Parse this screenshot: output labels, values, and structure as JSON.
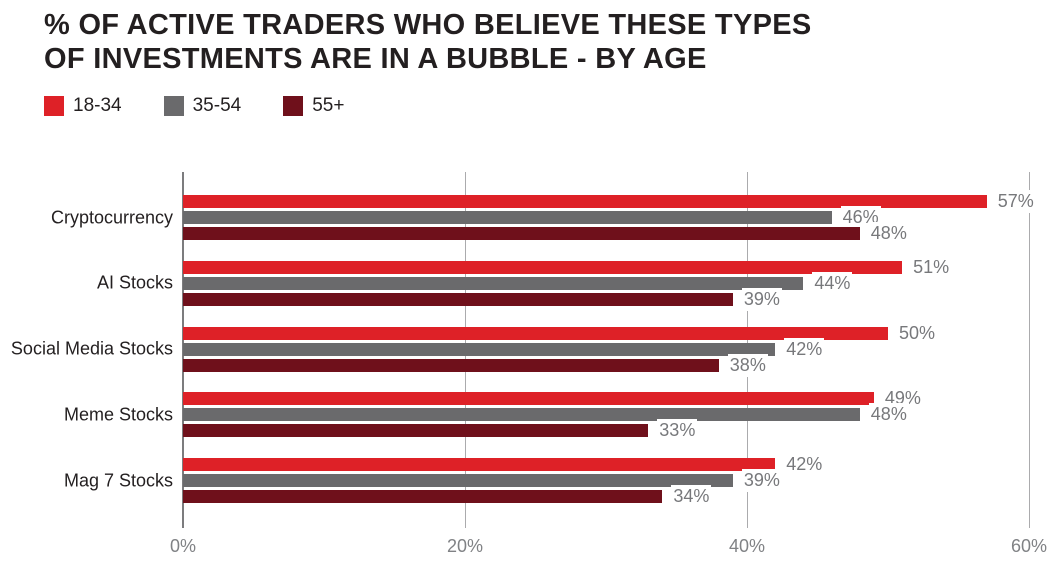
{
  "title": "% OF ACTIVE TRADERS WHO BELIEVE THESE TYPES\nOF INVESTMENTS ARE IN A BUBBLE - BY AGE",
  "chart_data": {
    "type": "bar",
    "orientation": "horizontal",
    "title": "% OF ACTIVE TRADERS WHO BELIEVE THESE TYPES OF INVESTMENTS ARE IN A BUBBLE - BY AGE",
    "categories": [
      "Cryptocurrency",
      "AI Stocks",
      "Social Media Stocks",
      "Meme Stocks",
      "Mag 7 Stocks"
    ],
    "series": [
      {
        "name": "18-34",
        "color": "#de2127",
        "values": [
          57,
          51,
          50,
          49,
          42
        ]
      },
      {
        "name": "35-54",
        "color": "#6a6a6c",
        "values": [
          46,
          44,
          42,
          48,
          39
        ]
      },
      {
        "name": "55+",
        "color": "#6f101b",
        "values": [
          48,
          39,
          38,
          33,
          34
        ]
      }
    ],
    "value_label_suffix": "%",
    "xlim": [
      0,
      60
    ],
    "x_ticks": [
      {
        "value": 0,
        "label": "0%"
      },
      {
        "value": 20,
        "label": "20%"
      },
      {
        "value": 40,
        "label": "40%"
      },
      {
        "value": 60,
        "label": "60%"
      }
    ],
    "grid": "vertical",
    "legend_position": "top-left"
  },
  "style": {
    "background": "#ffffff",
    "text_color": "#231f20",
    "axis_line_color": "#7c7c7e",
    "gridline_color": "#ababad",
    "value_label_color": "#77787b",
    "tick_label_color": "#808285"
  }
}
